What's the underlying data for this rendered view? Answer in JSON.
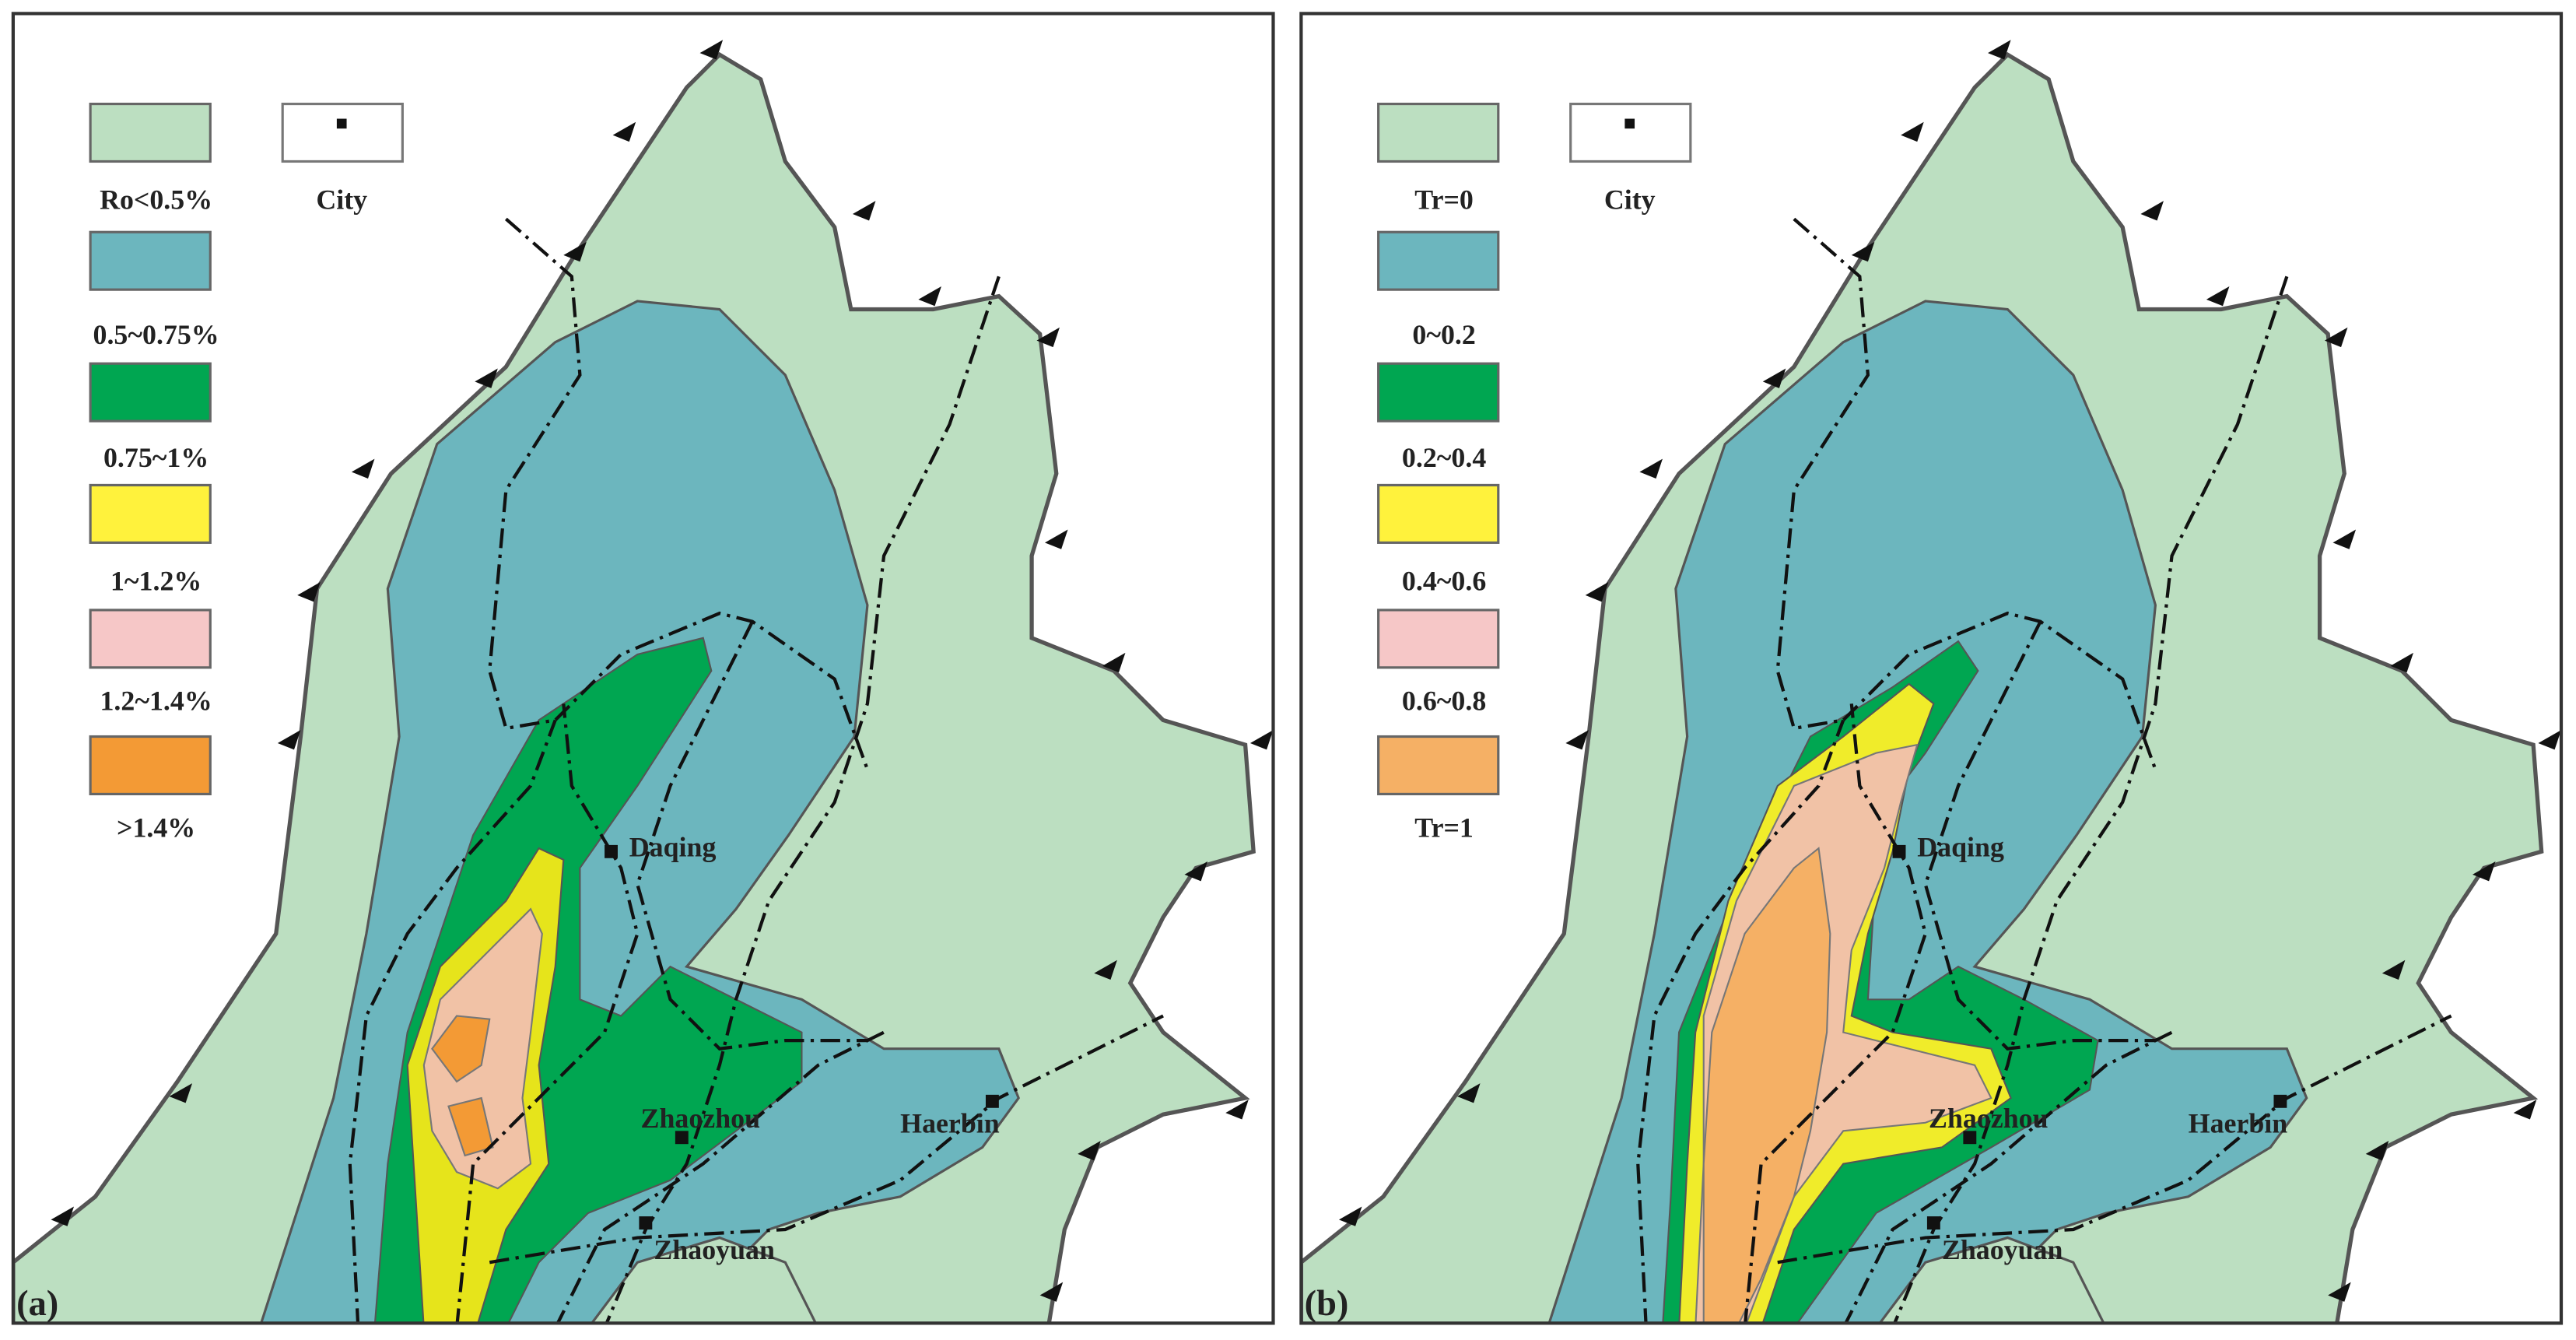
{
  "panels": [
    {
      "label": "(a)",
      "legend": [
        {
          "label": "Ro<0.5%",
          "color": "#bcdfc1"
        },
        {
          "label": "0.5~0.75%",
          "color": "#6cb6be"
        },
        {
          "label": "0.75~1%",
          "color": "#00a651"
        },
        {
          "label": "1~1.2%",
          "color": "#fff23c"
        },
        {
          "label": "1.2~1.4%",
          "color": "#f6c7c7"
        },
        {
          "label": ">1.4%",
          "color": "#f39a35"
        }
      ],
      "city_legend": "City",
      "cities": [
        "Daqing",
        "Zhaozhou",
        "Haerbin",
        "Zhaoyuan"
      ]
    },
    {
      "label": "(b)",
      "legend": [
        {
          "label": "Tr=0",
          "color": "#bcdfc1"
        },
        {
          "label": "0~0.2",
          "color": "#6cb6be"
        },
        {
          "label": "0.2~0.4",
          "color": "#00a651"
        },
        {
          "label": "0.4~0.6",
          "color": "#fff23c"
        },
        {
          "label": "0.6~0.8",
          "color": "#f6c7c7"
        },
        {
          "label": "Tr=1",
          "color": "#f5b065"
        }
      ],
      "city_legend": "City",
      "cities": [
        "Daqing",
        "Zhaozhou",
        "Haerbin",
        "Zhaoyuan"
      ]
    }
  ]
}
